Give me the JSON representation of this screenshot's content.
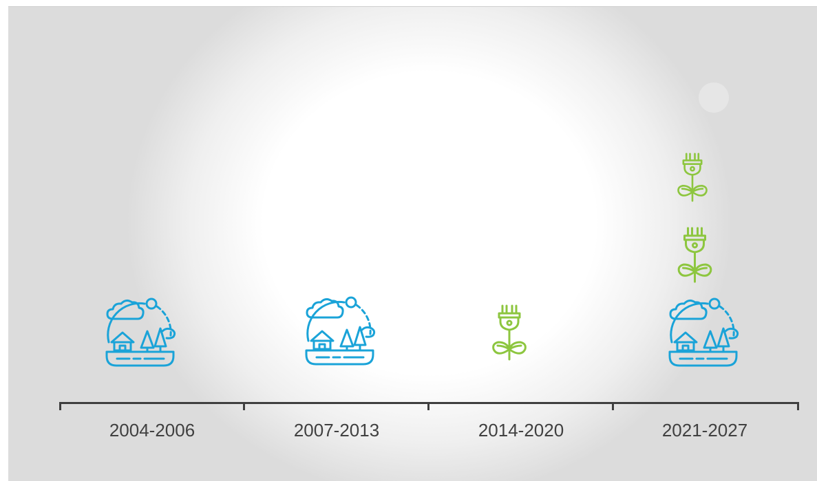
{
  "timeline": {
    "periods": [
      {
        "label": "2004-2006",
        "icons": [
          "landscape-icon"
        ]
      },
      {
        "label": "2007-2013",
        "icons": [
          "landscape-icon"
        ]
      },
      {
        "label": "2014-2020",
        "icons": [
          "plug-plant-icon"
        ]
      },
      {
        "label": "2021-2027",
        "icons": [
          "landscape-icon",
          "plug-plant-icon",
          "plug-plant-icon"
        ]
      }
    ]
  },
  "colors": {
    "landscape": "#1aa3d8",
    "plug_plant": "#8dc63f",
    "axis": "#3f3f3f",
    "label_text": "#404040",
    "background_edge": "#d6d6d6",
    "background_center": "#ffffff"
  }
}
